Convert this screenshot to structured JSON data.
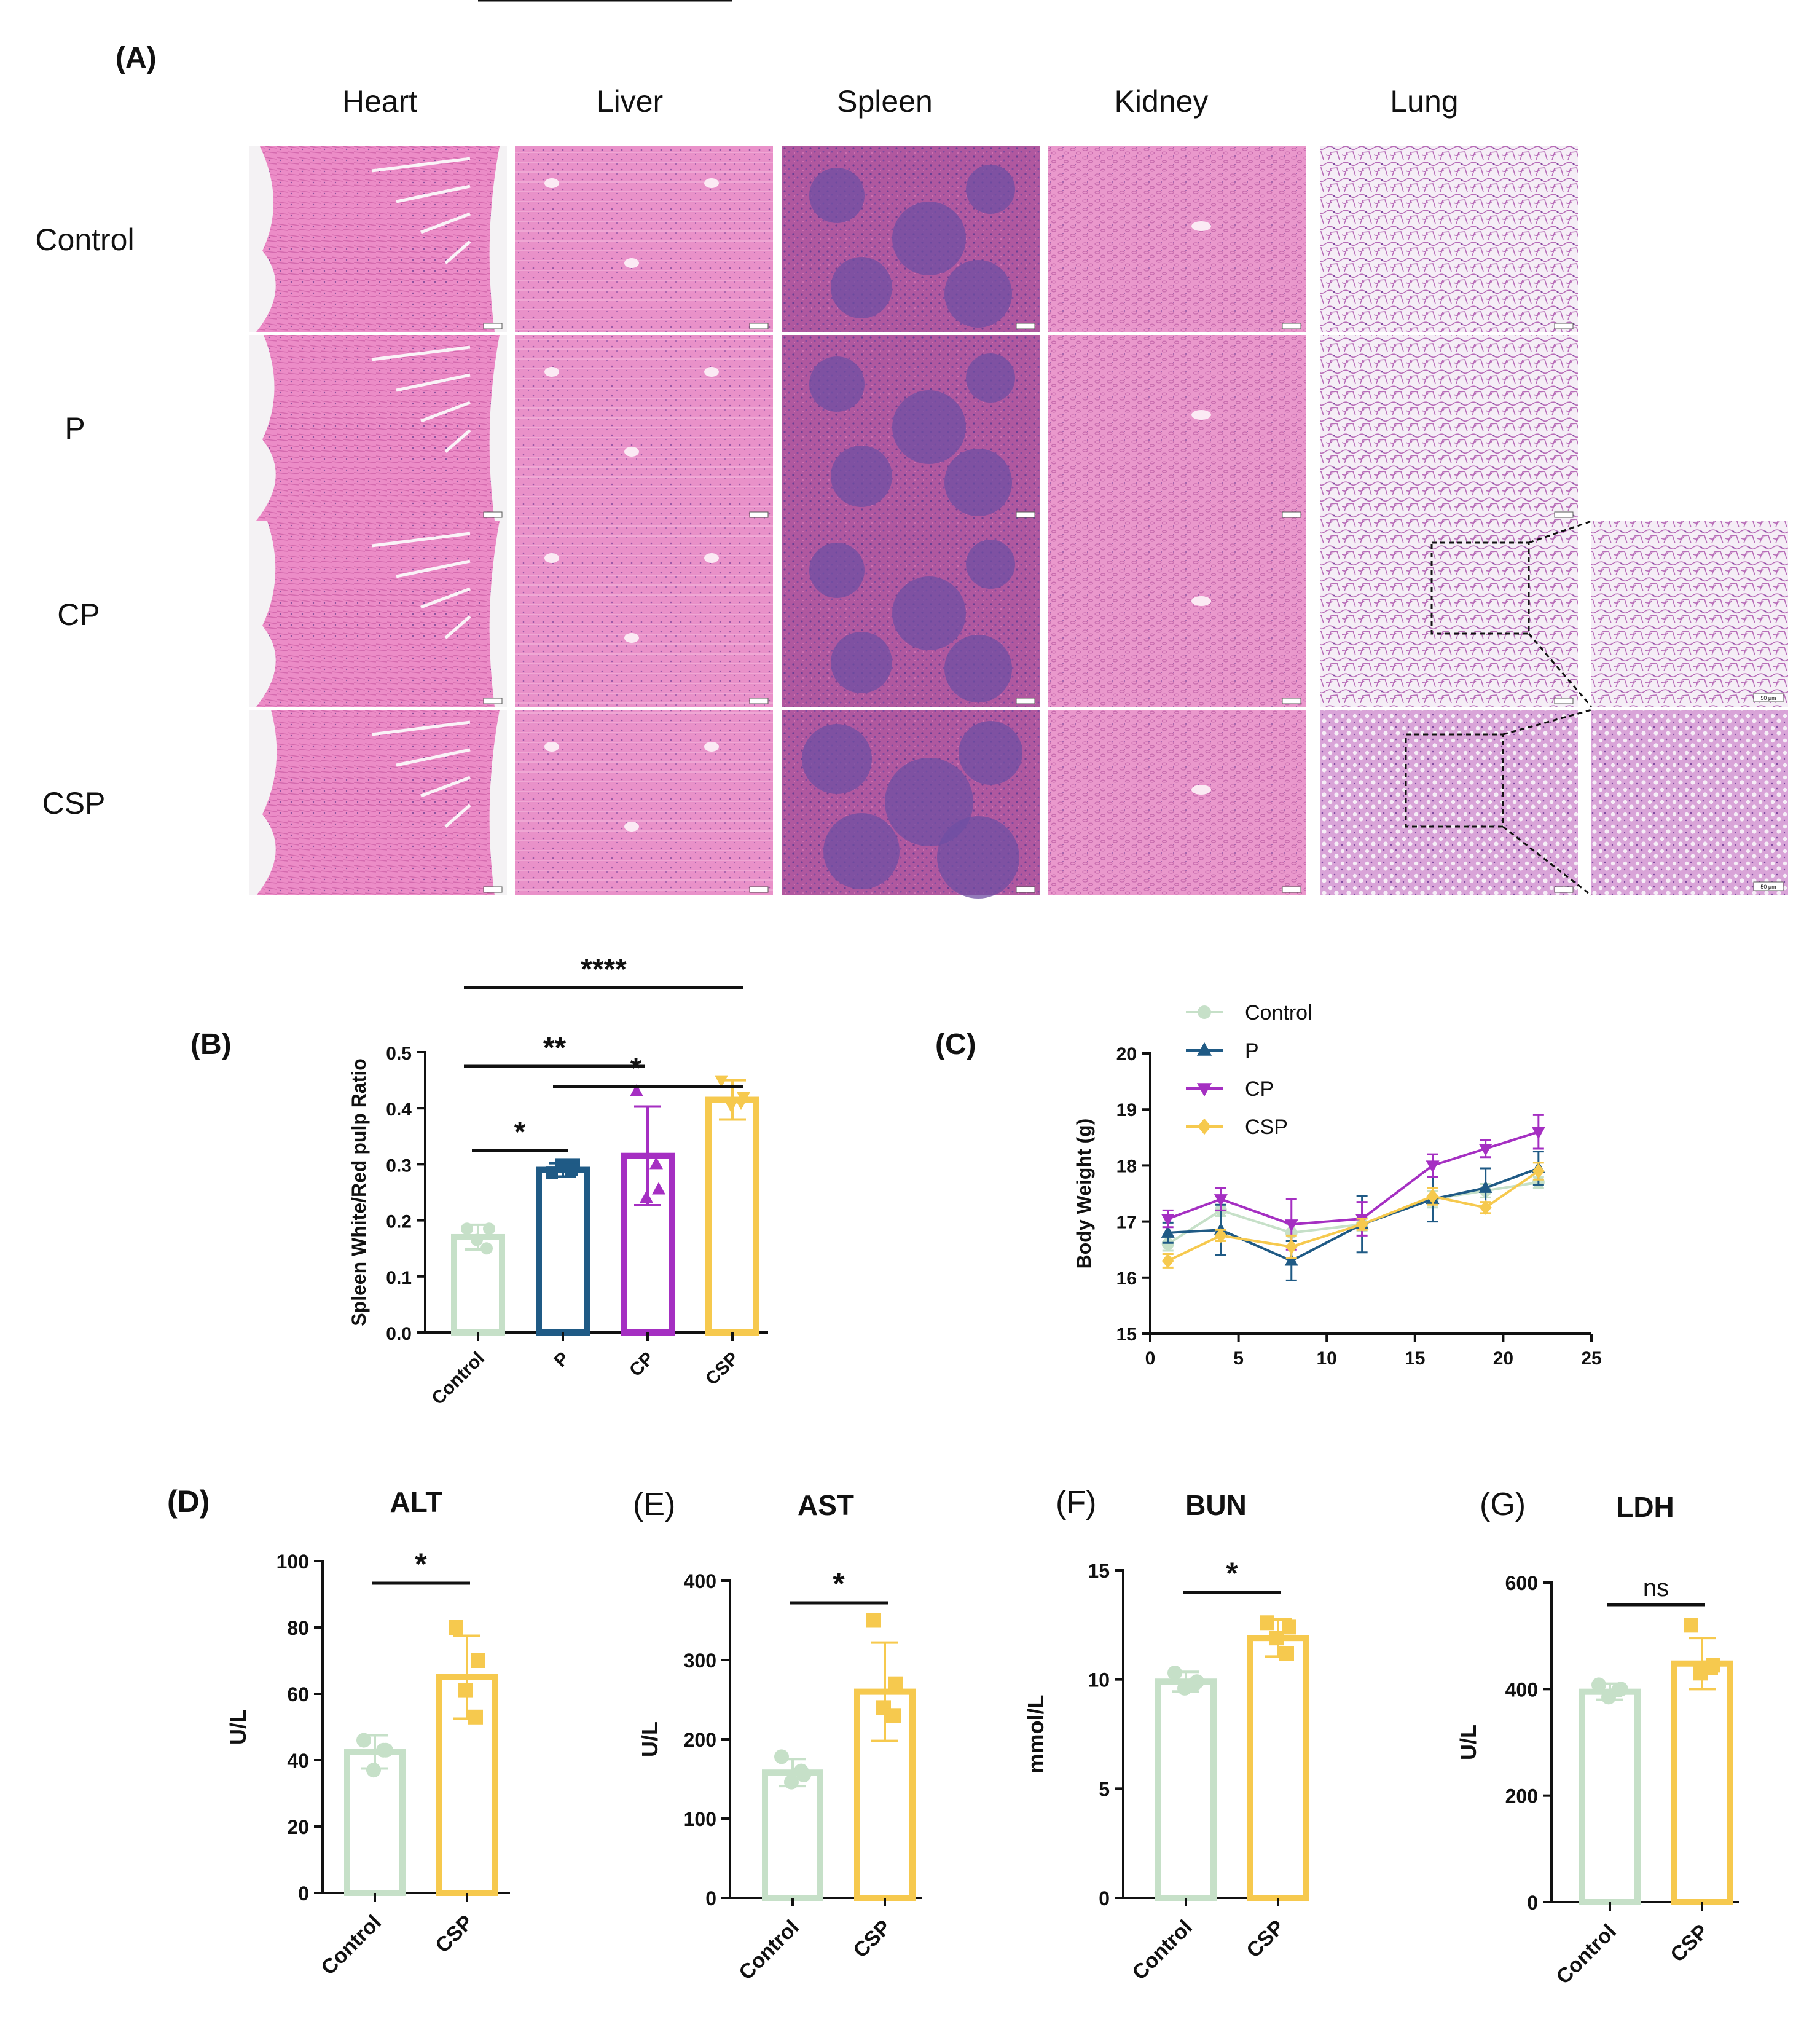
{
  "figure_labels": {
    "A": "(A)",
    "B": "(B)",
    "C": "(C)",
    "D": "(D)",
    "E": "(E)",
    "F": "(F)",
    "G": "(G)"
  },
  "histology": {
    "organs": [
      "Heart",
      "Liver",
      "Spleen",
      "Kidney",
      "Lung"
    ],
    "groups": [
      "Control",
      "P",
      "CP",
      "CSP"
    ],
    "scale_bar_main": "100 μm",
    "scale_bar_inset": "50 μm",
    "colors": {
      "heart": "#ea86c4",
      "liver": "#e68ac6",
      "spleen": "#a9569f",
      "spleen_pulp": "#7d52a6",
      "kidney": "#e694c9",
      "lung_bg": "#f4eef6",
      "lung_tissue": "#b96fb9",
      "lung_dense": "#c47fc8"
    }
  },
  "colors": {
    "control": "#c6e0c8",
    "p": "#1f5a85",
    "cp": "#a52fc2",
    "csp": "#f6c94e"
  },
  "chart_data": [
    {
      "id": "B",
      "type": "bar",
      "title": "",
      "ylabel": "Spleen White/Red pulp Ratio",
      "xlabel": "",
      "categories": [
        "Control",
        "P",
        "CP",
        "CSP"
      ],
      "values": [
        0.17,
        0.29,
        0.315,
        0.415
      ],
      "errors": [
        0.022,
        0.012,
        0.088,
        0.035
      ],
      "points": [
        [
          0.185,
          0.185,
          0.165,
          0.15
        ],
        [
          0.285,
          0.3,
          0.3,
          0.29
        ],
        [
          0.43,
          0.255,
          0.24,
          0.3
        ],
        [
          0.45,
          0.42,
          0.405,
          0.41
        ]
      ],
      "markers": [
        "circle",
        "square",
        "triangle",
        "triangle-down"
      ],
      "ylim": [
        0,
        0.5
      ],
      "yticks": [
        "0.0",
        "0.1",
        "0.2",
        "0.3",
        "0.4",
        "0.5"
      ],
      "significance": [
        {
          "from": 0,
          "to": 1,
          "label": "*"
        },
        {
          "from": 1,
          "to": 3,
          "label": "*"
        },
        {
          "from": 0,
          "to": 2,
          "label": "**"
        },
        {
          "from": 0,
          "to": 3,
          "label": "****"
        }
      ]
    },
    {
      "id": "C",
      "type": "line",
      "title": "",
      "ylabel": "Body Weight (g)",
      "xlabel": "",
      "xlim": [
        0,
        25
      ],
      "ylim": [
        15,
        20
      ],
      "xticks": [
        "0",
        "5",
        "10",
        "15",
        "20",
        "25"
      ],
      "yticks": [
        "15",
        "16",
        "17",
        "18",
        "19",
        "20"
      ],
      "legend": "top-left",
      "series": [
        {
          "name": "Control",
          "marker": "circle",
          "x": [
            1,
            4,
            8,
            12,
            16,
            19,
            22
          ],
          "values": [
            16.6,
            17.2,
            16.8,
            16.95,
            17.4,
            17.55,
            17.7
          ],
          "errors": [
            0.12,
            0.1,
            0.15,
            0.12,
            0.15,
            0.12,
            0.1
          ]
        },
        {
          "name": "P",
          "marker": "triangle",
          "x": [
            1,
            4,
            8,
            12,
            16,
            19,
            22
          ],
          "values": [
            16.8,
            16.85,
            16.3,
            16.95,
            17.4,
            17.6,
            17.95
          ],
          "errors": [
            0.18,
            0.45,
            0.35,
            0.5,
            0.4,
            0.35,
            0.3
          ]
        },
        {
          "name": "CP",
          "marker": "triangle-down",
          "x": [
            1,
            4,
            8,
            12,
            16,
            19,
            22
          ],
          "values": [
            17.05,
            17.4,
            16.95,
            17.05,
            18.0,
            18.3,
            18.6
          ],
          "errors": [
            0.15,
            0.2,
            0.45,
            0.3,
            0.2,
            0.15,
            0.3
          ]
        },
        {
          "name": "CSP",
          "marker": "diamond",
          "x": [
            1,
            4,
            8,
            12,
            16,
            19,
            22
          ],
          "values": [
            16.3,
            16.75,
            16.55,
            16.95,
            17.45,
            17.25,
            17.9
          ],
          "errors": [
            0.12,
            0.1,
            0.2,
            0.1,
            0.15,
            0.1,
            0.15
          ]
        }
      ]
    },
    {
      "id": "D",
      "type": "bar",
      "title": "ALT",
      "ylabel": "U/L",
      "categories": [
        "Control",
        "CSP"
      ],
      "values": [
        42.5,
        65
      ],
      "errors": [
        5,
        12.5
      ],
      "points": [
        [
          46,
          43,
          37,
          43
        ],
        [
          80,
          70,
          61,
          53
        ]
      ],
      "markers": [
        "circle",
        "square"
      ],
      "ylim": [
        0,
        100
      ],
      "yticks": [
        "0",
        "20",
        "40",
        "60",
        "80",
        "100"
      ],
      "significance": [
        {
          "from": 0,
          "to": 1,
          "label": "*"
        }
      ]
    },
    {
      "id": "E",
      "type": "bar",
      "title": "AST",
      "ylabel": "U/L",
      "categories": [
        "Control",
        "CSP"
      ],
      "values": [
        158,
        260
      ],
      "errors": [
        17,
        62
      ],
      "points": [
        [
          178,
          155,
          146,
          160
        ],
        [
          350,
          270,
          240,
          230
        ]
      ],
      "markers": [
        "circle",
        "square"
      ],
      "ylim": [
        0,
        400
      ],
      "yticks": [
        "0",
        "100",
        "200",
        "300",
        "400"
      ],
      "significance": [
        {
          "from": 0,
          "to": 1,
          "label": "*"
        }
      ]
    },
    {
      "id": "F",
      "type": "bar",
      "title": "BUN",
      "ylabel": "mmol/L",
      "categories": [
        "Control",
        "CSP"
      ],
      "values": [
        9.9,
        11.9
      ],
      "errors": [
        0.45,
        0.85
      ],
      "points": [
        [
          10.3,
          9.9,
          9.6,
          9.8
        ],
        [
          12.6,
          12.4,
          11.9,
          11.2
        ]
      ],
      "markers": [
        "circle",
        "square"
      ],
      "ylim": [
        0,
        15
      ],
      "yticks": [
        "0",
        "5",
        "10",
        "15"
      ],
      "significance": [
        {
          "from": 0,
          "to": 1,
          "label": "*"
        }
      ]
    },
    {
      "id": "G",
      "type": "bar",
      "title": "LDH",
      "ylabel": "U/L",
      "categories": [
        "Control",
        "CSP"
      ],
      "values": [
        395,
        448
      ],
      "errors": [
        15,
        48
      ],
      "points": [
        [
          408,
          400,
          385,
          398
        ],
        [
          520,
          445,
          430,
          440
        ]
      ],
      "markers": [
        "circle",
        "square"
      ],
      "ylim": [
        0,
        600
      ],
      "yticks": [
        "0",
        "200",
        "400",
        "600"
      ],
      "significance": [
        {
          "from": 0,
          "to": 1,
          "label": "ns"
        }
      ]
    }
  ]
}
